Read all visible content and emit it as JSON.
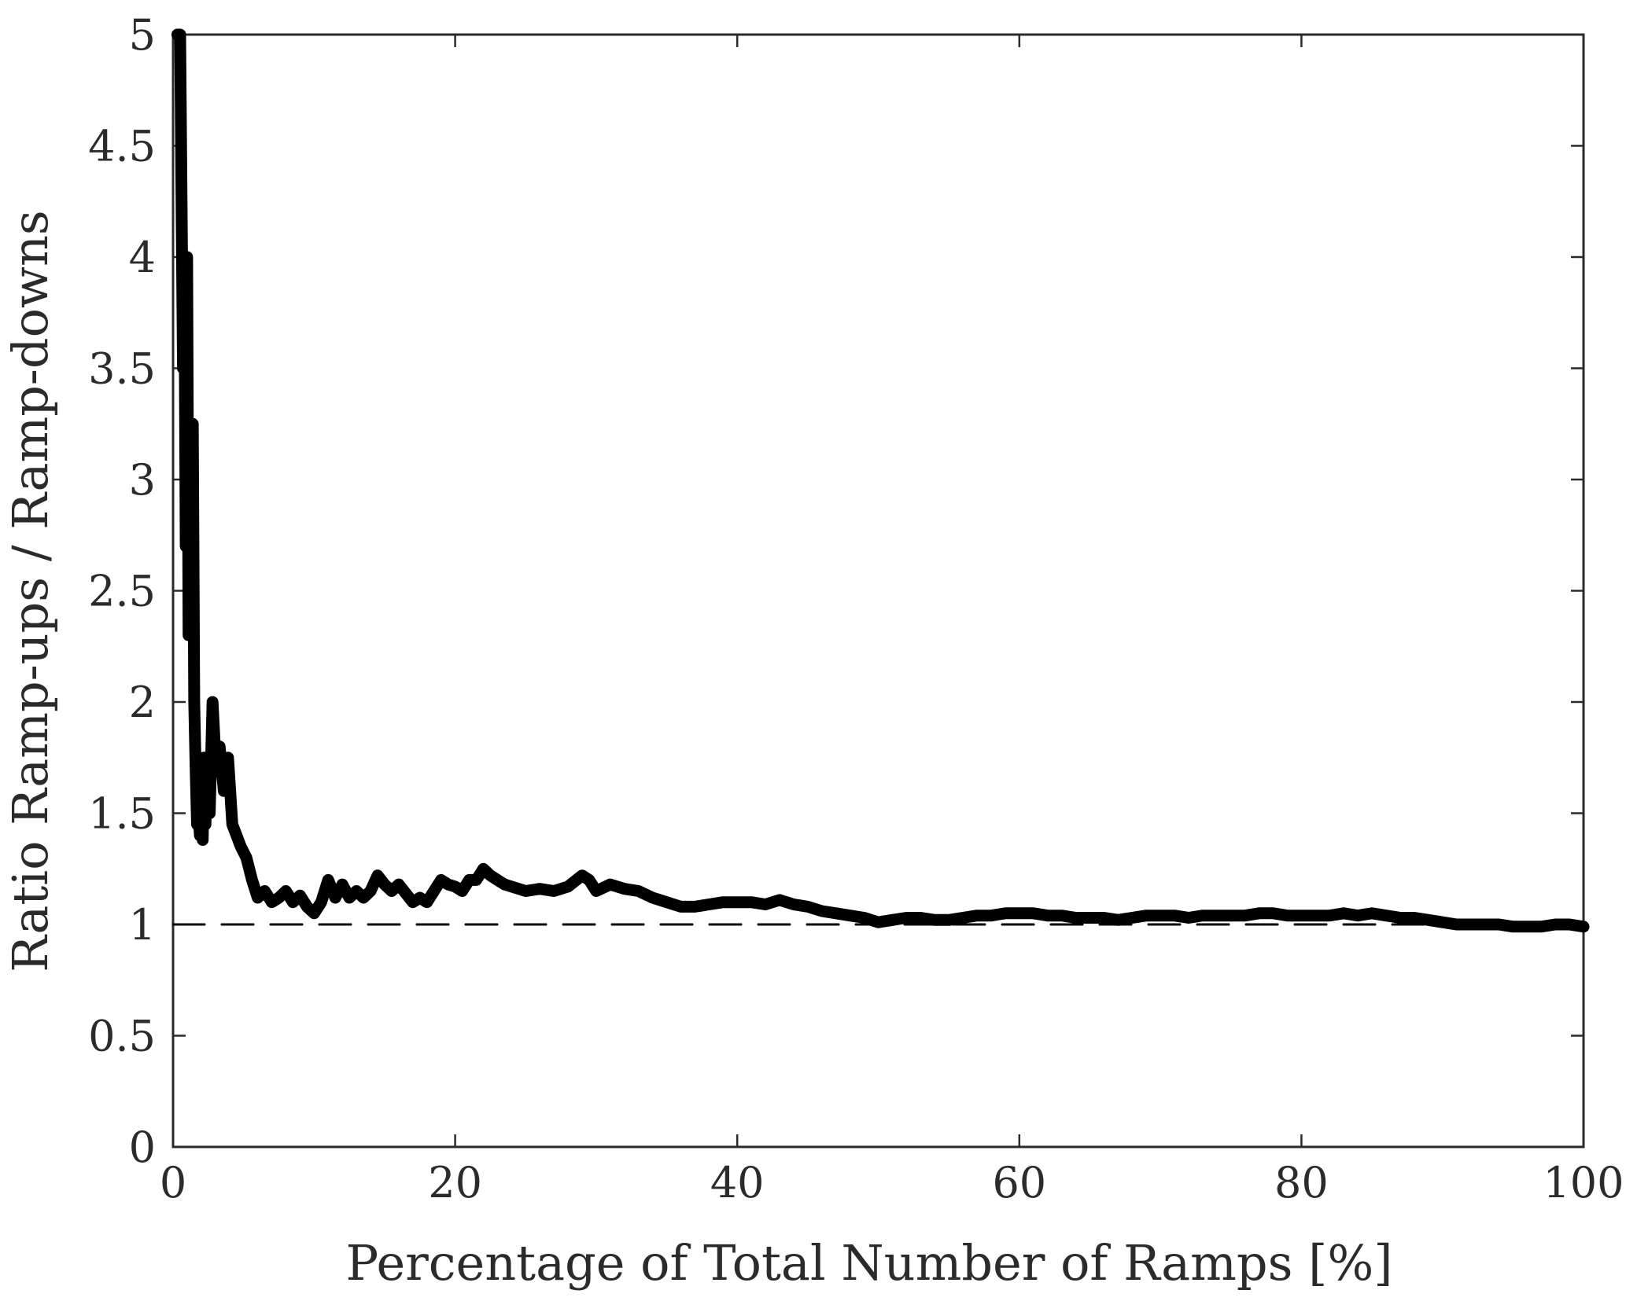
{
  "chart_data": {
    "type": "line",
    "title": "",
    "xlabel": "Percentage of Total Number of Ramps [%]",
    "ylabel": "Ratio Ramp-ups / Ramp-downs",
    "xlim": [
      0,
      100
    ],
    "ylim": [
      0,
      5
    ],
    "xticks": [
      0,
      20,
      40,
      60,
      80,
      100
    ],
    "yticks": [
      0,
      0.5,
      1,
      1.5,
      2,
      2.5,
      3,
      3.5,
      4,
      4.5,
      5
    ],
    "xtick_labels": [
      "0",
      "20",
      "40",
      "60",
      "80",
      "100"
    ],
    "ytick_labels": [
      "0",
      "0.5",
      "1",
      "1.5",
      "2",
      "2.5",
      "3",
      "3.5",
      "4",
      "4.5",
      "5"
    ],
    "grid": false,
    "legend": "none",
    "colors": {
      "series": "#000000",
      "reference": "#000000",
      "axes": "#2b2b2b"
    },
    "series": [
      {
        "style": "solid",
        "x": [
          0.3,
          0.5,
          0.7,
          0.8,
          0.9,
          1.0,
          1.1,
          1.2,
          1.3,
          1.4,
          1.5,
          1.6,
          1.7,
          1.8,
          1.9,
          2.0,
          2.1,
          2.2,
          2.3,
          2.4,
          2.6,
          2.8,
          3.0,
          3.3,
          3.6,
          3.9,
          4.2,
          4.5,
          4.8,
          5.2,
          5.6,
          6.0,
          6.5,
          7.0,
          7.5,
          8.0,
          8.5,
          9.0,
          9.5,
          10.0,
          10.5,
          11.0,
          11.5,
          12.0,
          12.5,
          13.0,
          13.5,
          14.0,
          14.5,
          15.0,
          15.5,
          16.0,
          16.5,
          17.0,
          17.5,
          18.0,
          18.5,
          19.0,
          19.5,
          20.0,
          20.5,
          21.0,
          21.5,
          22.0,
          22.5,
          23.0,
          23.5,
          24.0,
          25.0,
          26.0,
          27.0,
          28.0,
          29.0,
          29.5,
          30.0,
          31.0,
          32.0,
          33.0,
          34.0,
          35.0,
          36.0,
          37.0,
          38.0,
          39.0,
          40.0,
          41.0,
          42.0,
          43.0,
          44.0,
          45.0,
          46.0,
          47.0,
          48.0,
          49.0,
          50.0,
          51.0,
          52.0,
          53.0,
          54.0,
          55.0,
          56.0,
          57.0,
          58.0,
          59.0,
          60.0,
          61.0,
          62.0,
          63.0,
          64.0,
          65.0,
          66.0,
          67.0,
          68.0,
          69.0,
          70.0,
          71.0,
          72.0,
          73.0,
          74.0,
          75.0,
          76.0,
          77.0,
          78.0,
          79.0,
          80.0,
          81.0,
          82.0,
          83.0,
          84.0,
          85.0,
          86.0,
          87.0,
          88.0,
          89.0,
          90.0,
          91.0,
          92.0,
          93.0,
          94.0,
          95.0,
          96.0,
          97.0,
          98.0,
          99.0,
          100.0
        ],
        "y": [
          5.0,
          5.0,
          3.5,
          4.0,
          2.7,
          4.0,
          2.3,
          3.2,
          2.3,
          3.25,
          2.0,
          1.7,
          1.45,
          1.5,
          1.4,
          1.65,
          1.38,
          1.75,
          1.45,
          1.7,
          1.5,
          2.0,
          1.75,
          1.8,
          1.6,
          1.75,
          1.45,
          1.4,
          1.35,
          1.3,
          1.2,
          1.12,
          1.15,
          1.1,
          1.12,
          1.15,
          1.1,
          1.13,
          1.08,
          1.05,
          1.1,
          1.2,
          1.12,
          1.18,
          1.12,
          1.15,
          1.12,
          1.15,
          1.22,
          1.18,
          1.15,
          1.18,
          1.14,
          1.1,
          1.12,
          1.1,
          1.15,
          1.2,
          1.18,
          1.17,
          1.15,
          1.2,
          1.2,
          1.25,
          1.22,
          1.2,
          1.18,
          1.17,
          1.15,
          1.16,
          1.15,
          1.17,
          1.22,
          1.2,
          1.15,
          1.18,
          1.16,
          1.15,
          1.12,
          1.1,
          1.08,
          1.08,
          1.09,
          1.1,
          1.1,
          1.1,
          1.09,
          1.11,
          1.09,
          1.08,
          1.06,
          1.05,
          1.04,
          1.03,
          1.01,
          1.02,
          1.03,
          1.03,
          1.02,
          1.02,
          1.03,
          1.04,
          1.04,
          1.05,
          1.05,
          1.05,
          1.04,
          1.04,
          1.03,
          1.03,
          1.03,
          1.02,
          1.03,
          1.04,
          1.04,
          1.04,
          1.03,
          1.04,
          1.04,
          1.04,
          1.04,
          1.05,
          1.05,
          1.04,
          1.04,
          1.04,
          1.04,
          1.05,
          1.04,
          1.05,
          1.04,
          1.03,
          1.03,
          1.02,
          1.01,
          1.0,
          1.0,
          1.0,
          1.0,
          0.99,
          0.99,
          0.99,
          1.0,
          1.0,
          0.99
        ]
      },
      {
        "style": "dashed",
        "x": [
          0,
          100
        ],
        "y": [
          1,
          1
        ]
      }
    ]
  }
}
